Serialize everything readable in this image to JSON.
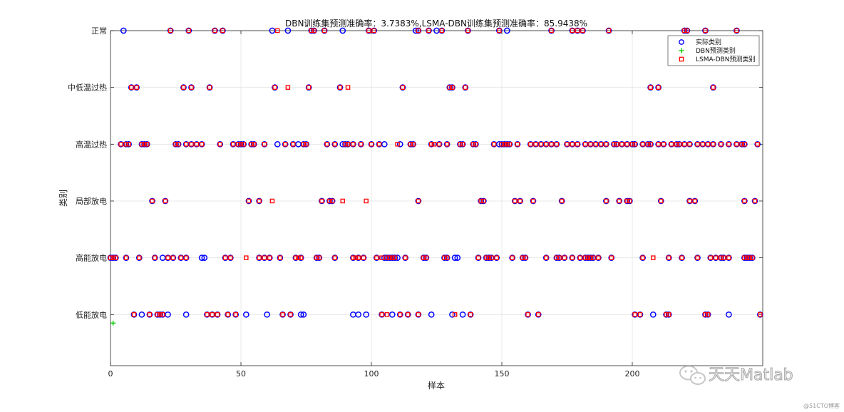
{
  "chart_data": {
    "type": "scatter",
    "title": "DBN训练集预测准确率：3.7383%,LSMA-DBN训练集预测准确率：85.9438%",
    "xlabel": "样本",
    "ylabel": "类别",
    "xlim": [
      0,
      250
    ],
    "ylim": [
      0.1,
      6
    ],
    "x_ticks": [
      0,
      50,
      100,
      150,
      200
    ],
    "x_tick_labels": [
      "0",
      "50",
      "100",
      "150",
      "200"
    ],
    "categories": [
      "低能放电",
      "高能放电",
      "局部放电",
      "高温过热",
      "中低温过热",
      "正常"
    ],
    "grid": true,
    "legend_position": "top-right",
    "series": [
      {
        "name": "实际类别",
        "marker": "circle",
        "color": "#0000ff",
        "points": {
          "正常": [
            5,
            23,
            30,
            40,
            43,
            62,
            68,
            77,
            78,
            82,
            89,
            99,
            101,
            117,
            118,
            122,
            125,
            127,
            137,
            149,
            152,
            169,
            177,
            179,
            181,
            191,
            220,
            221,
            228,
            240
          ],
          "中低温过热": [
            8,
            10,
            28,
            31,
            38,
            63,
            76,
            88,
            112,
            130,
            131,
            136,
            207,
            210,
            231
          ],
          "高温过热": [
            4,
            6,
            7,
            12,
            13,
            14,
            25,
            26,
            29,
            31,
            33,
            35,
            42,
            47,
            49,
            50,
            51,
            54,
            55,
            59,
            64,
            67,
            70,
            72,
            74,
            75,
            83,
            86,
            89,
            90,
            91,
            93,
            96,
            100,
            103,
            105,
            111,
            115,
            116,
            123,
            126,
            129,
            134,
            135,
            139,
            140,
            147,
            149,
            150,
            151,
            152,
            153,
            156,
            161,
            163,
            165,
            167,
            169,
            171,
            175,
            177,
            179,
            182,
            184,
            186,
            188,
            190,
            193,
            194,
            196,
            198,
            200,
            201,
            204,
            206,
            207,
            210,
            212,
            215,
            217,
            218,
            220,
            222,
            225,
            227,
            229,
            231,
            234,
            237,
            240,
            242,
            243,
            248
          ],
          "局部放电": [
            16,
            21,
            53,
            57,
            81,
            84,
            85,
            118,
            142,
            143,
            155,
            157,
            162,
            173,
            190,
            195,
            198,
            199,
            211,
            222,
            224,
            243,
            247
          ],
          "高能放电": [
            0,
            1,
            2,
            6,
            11,
            17,
            20,
            22,
            24,
            27,
            29,
            35,
            36,
            44,
            46,
            57,
            59,
            61,
            65,
            71,
            73,
            79,
            80,
            86,
            93,
            95,
            97,
            102,
            105,
            106,
            107,
            108,
            109,
            110,
            113,
            120,
            121,
            128,
            129,
            132,
            133,
            141,
            144,
            145,
            146,
            148,
            154,
            158,
            159,
            167,
            171,
            172,
            174,
            177,
            180,
            182,
            183,
            184,
            185,
            187,
            192,
            204,
            214,
            219,
            225,
            230,
            232,
            234,
            235,
            237,
            243,
            244,
            245,
            246
          ],
          "低能放电": [
            9,
            12,
            15,
            18,
            19,
            20,
            22,
            29,
            37,
            39,
            41,
            45,
            48,
            52,
            60,
            66,
            69,
            73,
            74,
            93,
            95,
            98,
            104,
            108,
            111,
            114,
            118,
            123,
            131,
            135,
            138,
            160,
            164,
            201,
            203,
            208,
            213,
            214,
            228,
            229,
            237,
            249
          ]
        }
      },
      {
        "name": "DBN预测类别",
        "marker": "plus",
        "color": "#00cc00",
        "points": {
          "": [
            1
          ]
        },
        "y_values": [
          0.85
        ]
      },
      {
        "name": "LSMA-DBN预测类别",
        "marker": "square",
        "color": "#ff0000",
        "points": {
          "正常": [
            23,
            30,
            40,
            43,
            64,
            77,
            78,
            82,
            99,
            101,
            118,
            122,
            127,
            137,
            149,
            169,
            177,
            179,
            181,
            191,
            220,
            221,
            228,
            240
          ],
          "中低温过热": [
            8,
            10,
            28,
            31,
            38,
            63,
            68,
            76,
            88,
            91,
            112,
            130,
            131,
            136,
            207,
            210,
            231
          ],
          "高温过热": [
            4,
            6,
            7,
            12,
            13,
            14,
            25,
            26,
            29,
            31,
            33,
            35,
            42,
            47,
            49,
            50,
            51,
            54,
            55,
            59,
            67,
            70,
            74,
            75,
            83,
            86,
            90,
            91,
            93,
            96,
            100,
            103,
            110,
            115,
            116,
            123,
            124,
            126,
            129,
            134,
            135,
            139,
            140,
            147,
            150,
            151,
            152,
            153,
            156,
            161,
            163,
            165,
            167,
            169,
            171,
            175,
            177,
            179,
            182,
            184,
            186,
            188,
            190,
            193,
            194,
            196,
            198,
            200,
            201,
            204,
            206,
            207,
            210,
            212,
            215,
            217,
            218,
            220,
            222,
            225,
            227,
            229,
            231,
            234,
            237,
            240,
            242,
            243,
            248
          ],
          "局部放电": [
            16,
            21,
            53,
            57,
            62,
            81,
            84,
            85,
            89,
            98,
            118,
            142,
            143,
            155,
            157,
            162,
            173,
            190,
            195,
            198,
            199,
            211,
            222,
            224,
            243,
            247
          ],
          "高能放电": [
            0,
            1,
            2,
            6,
            11,
            17,
            22,
            24,
            27,
            29,
            44,
            46,
            52,
            57,
            59,
            61,
            65,
            71,
            72,
            73,
            79,
            80,
            86,
            93,
            94,
            95,
            97,
            102,
            104,
            106,
            107,
            108,
            109,
            113,
            120,
            121,
            128,
            129,
            141,
            144,
            145,
            146,
            148,
            154,
            158,
            159,
            167,
            171,
            172,
            174,
            177,
            180,
            182,
            183,
            184,
            185,
            187,
            192,
            204,
            208,
            214,
            219,
            225,
            230,
            232,
            234,
            235,
            237,
            243,
            244,
            245,
            246
          ],
          "低能放电": [
            9,
            15,
            18,
            19,
            20,
            37,
            39,
            41,
            45,
            48,
            66,
            69,
            104,
            106,
            111,
            114,
            118,
            132,
            138,
            160,
            164,
            201,
            203,
            213,
            214,
            228,
            229,
            249
          ]
        }
      }
    ]
  },
  "watermark": {
    "brand": "天天Matlab",
    "source": "@51CTO博客"
  }
}
